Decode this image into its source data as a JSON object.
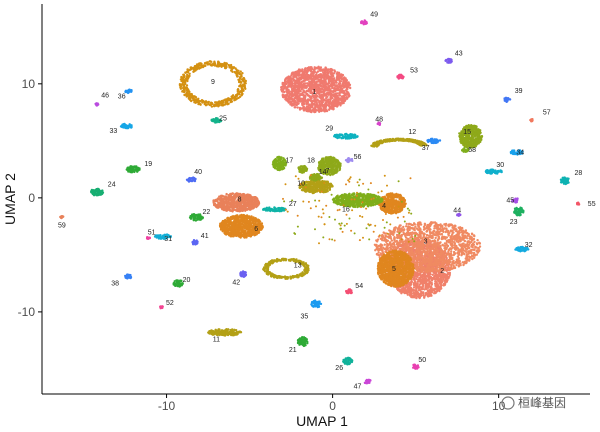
{
  "chart_data": {
    "type": "scatter",
    "xlabel": "UMAP 1",
    "ylabel": "UMAP 2",
    "xlim": [
      -17.5,
      15.5
    ],
    "ylim": [
      -17.2,
      17.0
    ],
    "xticks": [
      -10,
      0,
      10
    ],
    "yticks": [
      10,
      0,
      -10
    ],
    "grid": false,
    "legend": "none",
    "watermark": "桓峰基因",
    "clusters": [
      {
        "id": "1",
        "x": -1.0,
        "y": 9.5,
        "rx": 2.1,
        "ry": 2.0,
        "shape": "blob",
        "color": "#F07A6F",
        "lx": -1.1,
        "ly": 9.1
      },
      {
        "id": "2",
        "x": 5.2,
        "y": -6.2,
        "rx": 1.9,
        "ry": 2.6,
        "shape": "blob",
        "color": "#F0806A",
        "lx": 6.6,
        "ly": -6.6
      },
      {
        "id": "3",
        "x": 5.7,
        "y": -4.3,
        "rx": 3.2,
        "ry": 2.2,
        "shape": "blob",
        "color": "#F08A62",
        "lx": 5.6,
        "ly": -4.0
      },
      {
        "id": "4",
        "x": 3.6,
        "y": -0.5,
        "rx": 0.8,
        "ry": 0.9,
        "shape": "blob",
        "color": "#E0861F",
        "lx": 3.1,
        "ly": -0.9
      },
      {
        "id": "5",
        "x": 3.8,
        "y": -6.2,
        "rx": 1.1,
        "ry": 1.6,
        "shape": "blob",
        "color": "#E0861F",
        "lx": 3.7,
        "ly": -6.4
      },
      {
        "id": "6",
        "x": -5.5,
        "y": -2.5,
        "rx": 1.3,
        "ry": 1.0,
        "shape": "blob",
        "color": "#E0861F",
        "lx": -4.6,
        "ly": -2.9
      },
      {
        "id": "7",
        "x": -0.2,
        "y": 2.8,
        "rx": 0.7,
        "ry": 0.8,
        "shape": "blob",
        "color": "#8EA91A",
        "lx": -0.3,
        "ly": 2.2
      },
      {
        "id": "8",
        "x": -5.8,
        "y": -0.4,
        "rx": 1.4,
        "ry": 0.8,
        "shape": "blob",
        "color": "#E9815A",
        "lx": -5.6,
        "ly": -0.3
      },
      {
        "id": "9",
        "x": -7.2,
        "y": 10.0,
        "rx": 2.0,
        "ry": 2.0,
        "shape": "ring",
        "color": "#D49112",
        "lx": -7.2,
        "ly": 10.0
      },
      {
        "id": "10",
        "x": -1.0,
        "y": 1.0,
        "rx": 1.0,
        "ry": 0.6,
        "shape": "blob",
        "color": "#B3A016",
        "lx": -1.9,
        "ly": 1.1
      },
      {
        "id": "11",
        "x": -6.5,
        "y": -11.8,
        "rx": 1.0,
        "ry": 0.3,
        "shape": "blob",
        "color": "#B3A016",
        "lx": -7.0,
        "ly": -12.6
      },
      {
        "id": "12",
        "x": 4.0,
        "y": 4.7,
        "rx": 1.7,
        "ry": 0.7,
        "shape": "arc",
        "color": "#B3A016",
        "lx": 4.8,
        "ly": 5.6
      },
      {
        "id": "13",
        "x": -2.8,
        "y": -6.2,
        "rx": 1.4,
        "ry": 0.9,
        "shape": "ring",
        "color": "#B3A016",
        "lx": -2.1,
        "ly": -6.1
      },
      {
        "id": "14",
        "x": -1.0,
        "y": 1.8,
        "rx": 0.4,
        "ry": 0.3,
        "shape": "blob",
        "color": "#8EA91A",
        "lx": -0.6,
        "ly": 2.1
      },
      {
        "id": "15",
        "x": 8.3,
        "y": 5.4,
        "rx": 0.7,
        "ry": 1.0,
        "shape": "blob",
        "color": "#8EA91A",
        "lx": 8.1,
        "ly": 5.6
      },
      {
        "id": "16",
        "x": 1.5,
        "y": -0.2,
        "rx": 1.5,
        "ry": 0.6,
        "shape": "blob",
        "color": "#7FAE1B",
        "lx": 0.8,
        "ly": -1.2
      },
      {
        "id": "17",
        "x": -3.2,
        "y": 3.0,
        "rx": 0.4,
        "ry": 0.6,
        "shape": "blob",
        "color": "#7FAE1B",
        "lx": -2.6,
        "ly": 3.1
      },
      {
        "id": "18",
        "x": -1.8,
        "y": 2.5,
        "rx": 0.3,
        "ry": 0.3,
        "shape": "blob",
        "color": "#8EA91A",
        "lx": -1.3,
        "ly": 3.1
      },
      {
        "id": "19",
        "x": -12.0,
        "y": 2.5,
        "rx": 0.4,
        "ry": 0.3,
        "shape": "blob",
        "color": "#2EAA36",
        "lx": -11.1,
        "ly": 2.8
      },
      {
        "id": "20",
        "x": -9.3,
        "y": -7.5,
        "rx": 0.3,
        "ry": 0.3,
        "shape": "blob",
        "color": "#2EAA36",
        "lx": -8.8,
        "ly": -7.4
      },
      {
        "id": "21",
        "x": -1.8,
        "y": -12.6,
        "rx": 0.3,
        "ry": 0.4,
        "shape": "blob",
        "color": "#2EAA36",
        "lx": -2.4,
        "ly": -13.5
      },
      {
        "id": "22",
        "x": -8.2,
        "y": -1.7,
        "rx": 0.4,
        "ry": 0.3,
        "shape": "blob",
        "color": "#2EAA36",
        "lx": -7.6,
        "ly": -1.4
      },
      {
        "id": "23",
        "x": 11.2,
        "y": -1.2,
        "rx": 0.3,
        "ry": 0.4,
        "shape": "blob",
        "color": "#1EB060",
        "lx": 10.9,
        "ly": -2.3
      },
      {
        "id": "24",
        "x": -14.2,
        "y": 0.5,
        "rx": 0.4,
        "ry": 0.3,
        "shape": "blob",
        "color": "#18AE72",
        "lx": -13.3,
        "ly": 1.0
      },
      {
        "id": "25",
        "x": -7.0,
        "y": 6.8,
        "rx": 0.3,
        "ry": 0.2,
        "shape": "blob",
        "color": "#13B28A",
        "lx": -6.6,
        "ly": 6.8
      },
      {
        "id": "26",
        "x": 0.9,
        "y": -14.3,
        "rx": 0.3,
        "ry": 0.3,
        "shape": "blob",
        "color": "#11B29A",
        "lx": 0.4,
        "ly": -15.1
      },
      {
        "id": "27",
        "x": -3.5,
        "y": -1.0,
        "rx": 0.7,
        "ry": 0.2,
        "shape": "blob",
        "color": "#0FB3A7",
        "lx": -2.4,
        "ly": -0.7
      },
      {
        "id": "28",
        "x": 14.0,
        "y": 1.5,
        "rx": 0.3,
        "ry": 0.3,
        "shape": "blob",
        "color": "#0EB2B2",
        "lx": 14.8,
        "ly": 2.0
      },
      {
        "id": "29",
        "x": 0.8,
        "y": 5.4,
        "rx": 0.8,
        "ry": 0.2,
        "shape": "blob",
        "color": "#0EB2C0",
        "lx": -0.2,
        "ly": 5.9
      },
      {
        "id": "30",
        "x": 9.7,
        "y": 2.3,
        "rx": 0.5,
        "ry": 0.2,
        "shape": "blob",
        "color": "#10B0CC",
        "lx": 10.1,
        "ly": 2.7
      },
      {
        "id": "31",
        "x": -10.2,
        "y": -3.4,
        "rx": 0.5,
        "ry": 0.2,
        "shape": "blob",
        "color": "#12AED6",
        "lx": -9.9,
        "ly": -3.8
      },
      {
        "id": "32",
        "x": 11.4,
        "y": -4.5,
        "rx": 0.4,
        "ry": 0.2,
        "shape": "blob",
        "color": "#14AADF",
        "lx": 11.8,
        "ly": -4.3
      },
      {
        "id": "33",
        "x": -12.4,
        "y": 6.3,
        "rx": 0.4,
        "ry": 0.2,
        "shape": "blob",
        "color": "#16A6E6",
        "lx": -13.2,
        "ly": 5.7
      },
      {
        "id": "34",
        "x": 11.1,
        "y": 4.0,
        "rx": 0.4,
        "ry": 0.2,
        "shape": "blob",
        "color": "#19A1EC",
        "lx": 11.3,
        "ly": 3.8
      },
      {
        "id": "35",
        "x": -1.0,
        "y": -9.3,
        "rx": 0.3,
        "ry": 0.3,
        "shape": "blob",
        "color": "#1C9BF0",
        "lx": -1.7,
        "ly": -10.6
      },
      {
        "id": "36",
        "x": -12.3,
        "y": 9.4,
        "rx": 0.2,
        "ry": 0.2,
        "shape": "blob",
        "color": "#2393F2",
        "lx": -12.7,
        "ly": 8.7
      },
      {
        "id": "37",
        "x": 6.1,
        "y": 5.0,
        "rx": 0.4,
        "ry": 0.2,
        "shape": "blob",
        "color": "#2B8AF4",
        "lx": 5.6,
        "ly": 4.2
      },
      {
        "id": "38",
        "x": -12.3,
        "y": -6.9,
        "rx": 0.2,
        "ry": 0.2,
        "shape": "blob",
        "color": "#3681F5",
        "lx": -13.1,
        "ly": -7.7
      },
      {
        "id": "39",
        "x": 10.5,
        "y": 8.6,
        "rx": 0.2,
        "ry": 0.2,
        "shape": "blob",
        "color": "#4277F5",
        "lx": 11.2,
        "ly": 9.2
      },
      {
        "id": "40",
        "x": -8.5,
        "y": 1.6,
        "rx": 0.3,
        "ry": 0.2,
        "shape": "blob",
        "color": "#4F6DF4",
        "lx": -8.1,
        "ly": 2.1
      },
      {
        "id": "41",
        "x": -8.3,
        "y": -3.9,
        "rx": 0.2,
        "ry": 0.2,
        "shape": "blob",
        "color": "#5C66F3",
        "lx": -7.7,
        "ly": -3.5
      },
      {
        "id": "42",
        "x": -5.4,
        "y": -6.7,
        "rx": 0.2,
        "ry": 0.3,
        "shape": "blob",
        "color": "#6B60F1",
        "lx": -5.8,
        "ly": -7.6
      },
      {
        "id": "43",
        "x": 7.0,
        "y": 12.0,
        "rx": 0.2,
        "ry": 0.2,
        "shape": "blob",
        "color": "#7C5AEE",
        "lx": 7.6,
        "ly": 12.5
      },
      {
        "id": "44",
        "x": 7.6,
        "y": -1.5,
        "rx": 0.1,
        "ry": 0.1,
        "shape": "blob",
        "color": "#9154EA",
        "lx": 7.5,
        "ly": -1.3
      },
      {
        "id": "45",
        "x": 11.0,
        "y": -0.2,
        "rx": 0.2,
        "ry": 0.2,
        "shape": "blob",
        "color": "#A64EE5",
        "lx": 10.7,
        "ly": -0.4
      },
      {
        "id": "46",
        "x": -14.2,
        "y": 8.2,
        "rx": 0.1,
        "ry": 0.1,
        "shape": "blob",
        "color": "#B94ADF",
        "lx": -13.7,
        "ly": 8.8
      },
      {
        "id": "47",
        "x": 2.1,
        "y": -16.1,
        "rx": 0.2,
        "ry": 0.2,
        "shape": "blob",
        "color": "#CA46D7",
        "lx": 1.5,
        "ly": -16.7
      },
      {
        "id": "48",
        "x": 2.8,
        "y": 6.5,
        "rx": 0.1,
        "ry": 0.1,
        "shape": "blob",
        "color": "#D843CC",
        "lx": 2.8,
        "ly": 6.7
      },
      {
        "id": "49",
        "x": 1.9,
        "y": 15.4,
        "rx": 0.2,
        "ry": 0.2,
        "shape": "blob",
        "color": "#E241BF",
        "lx": 2.5,
        "ly": 15.9
      },
      {
        "id": "50",
        "x": 5.0,
        "y": -14.8,
        "rx": 0.2,
        "ry": 0.2,
        "shape": "blob",
        "color": "#E940B1",
        "lx": 5.4,
        "ly": -14.4
      },
      {
        "id": "51",
        "x": -11.1,
        "y": -3.5,
        "rx": 0.1,
        "ry": 0.1,
        "shape": "blob",
        "color": "#EF42A2",
        "lx": -10.9,
        "ly": -3.2
      },
      {
        "id": "52",
        "x": -10.3,
        "y": -9.6,
        "rx": 0.1,
        "ry": 0.1,
        "shape": "blob",
        "color": "#F24592",
        "lx": -9.8,
        "ly": -9.4
      },
      {
        "id": "53",
        "x": 4.1,
        "y": 10.6,
        "rx": 0.2,
        "ry": 0.2,
        "shape": "blob",
        "color": "#F44A82",
        "lx": 4.9,
        "ly": 11.0
      },
      {
        "id": "54",
        "x": 1.0,
        "y": -8.2,
        "rx": 0.2,
        "ry": 0.2,
        "shape": "blob",
        "color": "#F44F73",
        "lx": 1.6,
        "ly": -7.9
      },
      {
        "id": "55",
        "x": 14.8,
        "y": -0.5,
        "rx": 0.1,
        "ry": 0.1,
        "shape": "blob",
        "color": "#F35566",
        "lx": 15.6,
        "ly": -0.7
      },
      {
        "id": "56",
        "x": 1.0,
        "y": 3.3,
        "rx": 0.2,
        "ry": 0.2,
        "shape": "blob",
        "color": "#9F8CF0",
        "lx": 1.5,
        "ly": 3.4
      },
      {
        "id": "57",
        "x": 12.0,
        "y": 6.8,
        "rx": 0.1,
        "ry": 0.1,
        "shape": "blob",
        "color": "#F1795E",
        "lx": 12.9,
        "ly": 7.3
      },
      {
        "id": "58",
        "x": 8.0,
        "y": 4.2,
        "rx": 0.2,
        "ry": 0.2,
        "shape": "blob",
        "color": "#7FAE1B",
        "lx": 8.4,
        "ly": 4.0
      },
      {
        "id": "59",
        "x": -16.3,
        "y": -1.7,
        "rx": 0.1,
        "ry": 0.1,
        "shape": "blob",
        "color": "#E8815A",
        "lx": -16.3,
        "ly": -2.6
      }
    ]
  }
}
